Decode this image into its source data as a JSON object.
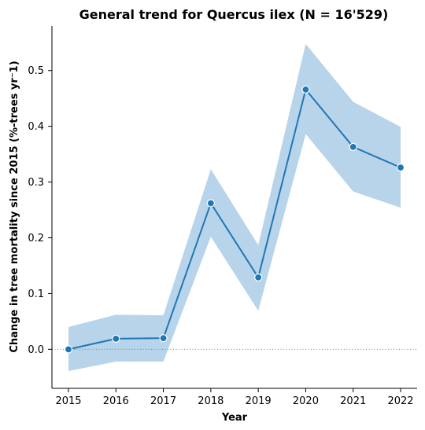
{
  "chart_data": {
    "type": "line",
    "title": "General trend for Quercus ilex  (N = 16'529)",
    "xlabel": "Year",
    "ylabel": "Change in tree mortality since 2015 (%-trees yr⁻1)",
    "x": [
      "2015",
      "2016",
      "2017",
      "2018",
      "2019",
      "2020",
      "2021",
      "2022"
    ],
    "series": [
      {
        "values": [
          0.0,
          0.019,
          0.02,
          0.262,
          0.129,
          0.466,
          0.363,
          0.326
        ],
        "ci_lower": [
          -0.039,
          -0.022,
          -0.022,
          0.202,
          0.069,
          0.386,
          0.283,
          0.254
        ],
        "ci_upper": [
          0.04,
          0.062,
          0.061,
          0.323,
          0.187,
          0.548,
          0.444,
          0.399
        ]
      }
    ],
    "yticks": [
      "0.0",
      "0.1",
      "0.2",
      "0.3",
      "0.4",
      "0.5"
    ],
    "ylim": [
      -0.07,
      0.58
    ],
    "reference_line": 0.0,
    "colors": {
      "line": "#1f77b4",
      "band": "#b8d4ea",
      "reference": "#808080"
    },
    "grid": false,
    "legend": "none"
  }
}
